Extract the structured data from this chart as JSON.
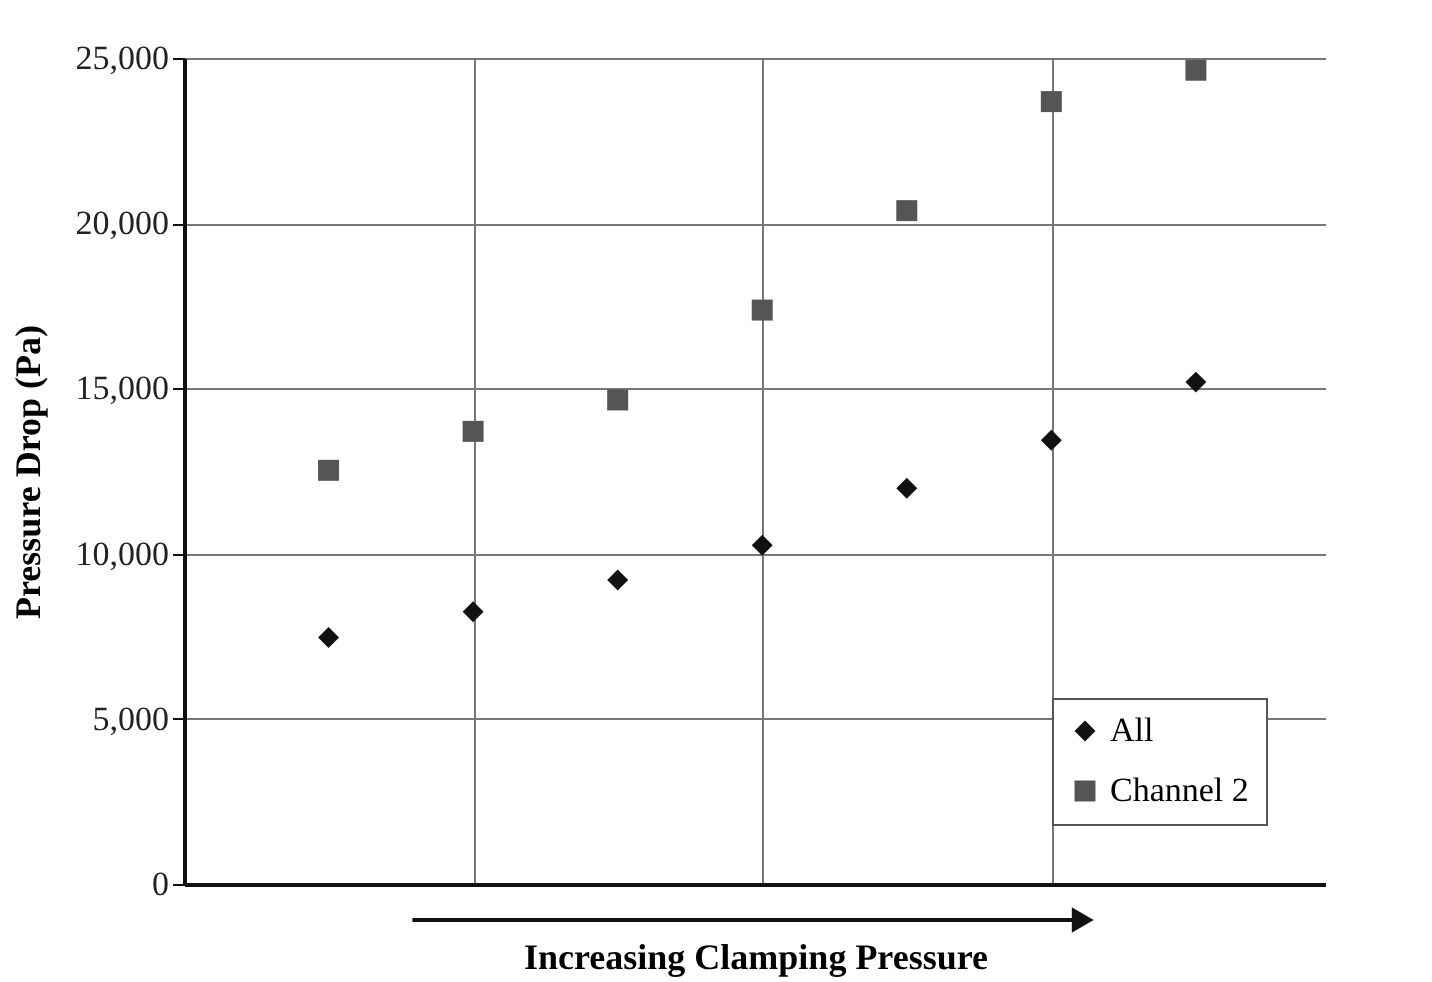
{
  "chart_data": {
    "type": "scatter",
    "xlabel": "Increasing Clamping Pressure",
    "ylabel": "Pressure Drop (Pa)",
    "categories": [
      null,
      null,
      null,
      null,
      null,
      null,
      null
    ],
    "ylim": [
      0,
      25000
    ],
    "yticks": [
      {
        "value": 0,
        "label": "0"
      },
      {
        "value": 5000,
        "label": "5,000"
      },
      {
        "value": 10000,
        "label": "10,000"
      },
      {
        "value": 15000,
        "label": "15,000"
      },
      {
        "value": 20000,
        "label": "20,000"
      },
      {
        "value": 25000,
        "label": "25,000"
      }
    ],
    "tick_labels": "y",
    "grid": true,
    "legend": "bottom right",
    "series": [
      {
        "name": "All",
        "color": "#111111",
        "marker": "diamond",
        "values": [
          7460,
          8240,
          9200,
          10250,
          11980,
          13430,
          15190
        ]
      },
      {
        "name": "Channel 2",
        "color": "#555555",
        "marker": "square",
        "values": [
          12520,
          13700,
          14650,
          17370,
          20380,
          23680,
          24630
        ]
      }
    ]
  }
}
